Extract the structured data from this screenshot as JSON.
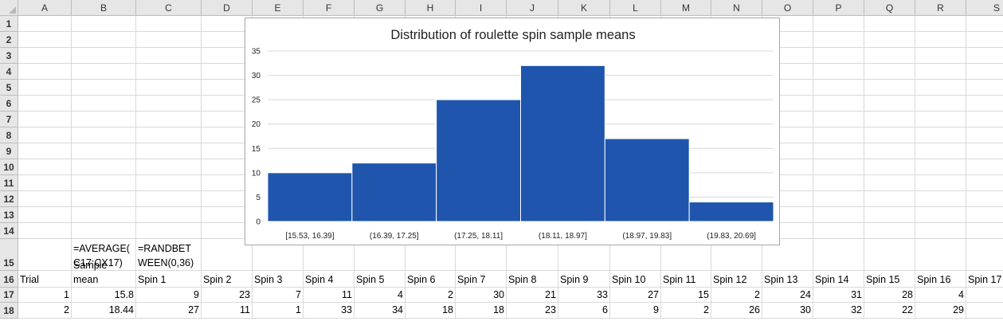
{
  "columns": [
    "A",
    "B",
    "C",
    "D",
    "E",
    "F",
    "G",
    "H",
    "I",
    "J",
    "K",
    "L",
    "M",
    "N",
    "O",
    "P",
    "Q",
    "R",
    "S"
  ],
  "rows": [
    "1",
    "2",
    "3",
    "4",
    "5",
    "6",
    "7",
    "8",
    "9",
    "10",
    "11",
    "12",
    "13",
    "14",
    "15",
    "16",
    "17",
    "18"
  ],
  "cells": {
    "B15": [
      "=AVERAGE(",
      "C17:CX17)"
    ],
    "C15": [
      "=RANDBET",
      "WEEN(0,36)"
    ],
    "A16": "Trial",
    "B16": [
      "Sample",
      "mean"
    ],
    "spin_headers": [
      "Spin 1",
      "Spin 2",
      "Spin 3",
      "Spin 4",
      "Spin 5",
      "Spin 6",
      "Spin 7",
      "Spin 8",
      "Spin 9",
      "Spin 10",
      "Spin 11",
      "Spin 12",
      "Spin 13",
      "Spin 14",
      "Spin 15",
      "Spin 16",
      "Spin 17"
    ],
    "row17": [
      "1",
      "15.8",
      "9",
      "23",
      "7",
      "11",
      "4",
      "2",
      "30",
      "21",
      "33",
      "27",
      "15",
      "2",
      "24",
      "31",
      "28",
      "4"
    ],
    "row18": [
      "2",
      "18.44",
      "27",
      "11",
      "1",
      "33",
      "34",
      "18",
      "18",
      "23",
      "6",
      "9",
      "2",
      "26",
      "30",
      "32",
      "22",
      "29"
    ]
  },
  "chart_data": {
    "type": "bar",
    "title": "Distribution of roulette spin sample means",
    "categories": [
      "[15.53, 16.39]",
      "(16.39, 17.25]",
      "(17.25, 18.11]",
      "(18.11, 18.97]",
      "(18.97, 19.83]",
      "(19.83, 20.69]"
    ],
    "values": [
      10,
      12,
      25,
      32,
      17,
      4
    ],
    "ylim": [
      0,
      35
    ],
    "yticks": [
      "0",
      "5",
      "10",
      "15",
      "20",
      "25",
      "30",
      "35"
    ],
    "grid": true,
    "bar_color": "#1f55ad"
  },
  "colors": {
    "header_bg": "#e6e6e6",
    "gridline": "#d9d9d9",
    "bar": "#1f55ad"
  }
}
